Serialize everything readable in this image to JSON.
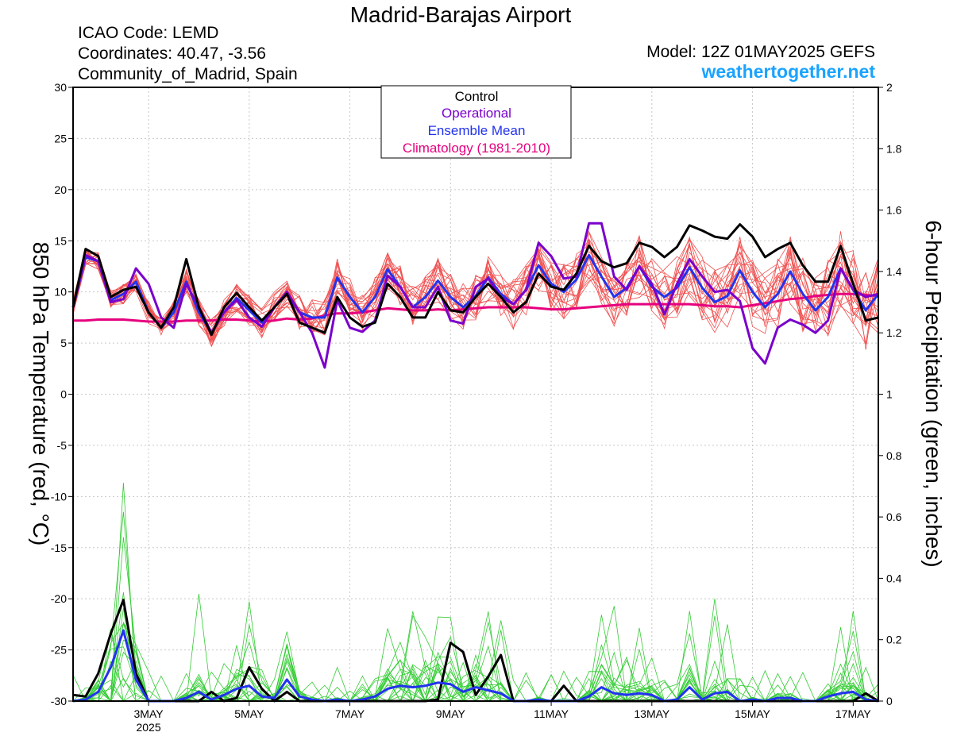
{
  "header": {
    "title": "Madrid-Barajas Airport",
    "icao": "ICAO Code: LEMD",
    "coordinates": "Coordinates: 40.47, -3.56",
    "region": "Community_of_Madrid, Spain",
    "model": "Model: 12Z 01MAY2025 GEFS",
    "brand": "weathertogether.net"
  },
  "colors": {
    "control": "#000000",
    "operational": "#7a00cc",
    "ensemble_mean": "#2233ee",
    "climatology": "#e6007e",
    "members_temp": "#f05050",
    "members_precip": "#33cc33",
    "brand": "#1aa3ff",
    "grid": "#c8c8c8"
  },
  "legend": {
    "items": [
      {
        "label": "Control",
        "color": "#000000"
      },
      {
        "label": "Operational",
        "color": "#7a00cc"
      },
      {
        "label": "Ensemble Mean",
        "color": "#2233ee"
      },
      {
        "label": "Climatology (1981-2010)",
        "color": "#e6007e"
      }
    ]
  },
  "chart_data": {
    "type": "line",
    "xlabel": "",
    "ylabel_left": "850 hPa Temperature (red, °C)",
    "ylabel_right": "6-hour Precipitation (green, inches)",
    "x_start": "01MAY2025 12Z",
    "x_step_hours": 6,
    "x_ticks": [
      "3MAY",
      "5MAY",
      "7MAY",
      "9MAY",
      "11MAY",
      "13MAY",
      "15MAY",
      "17MAY"
    ],
    "x_tick_year": "2025",
    "ylim_left": [
      -30,
      30
    ],
    "ylim_right": [
      0,
      2
    ],
    "yticks_left": [
      "30",
      "25",
      "20",
      "15",
      "10",
      "5",
      "0",
      "-5",
      "-10",
      "-15",
      "-20",
      "-25",
      "-30"
    ],
    "yticks_right": [
      "2",
      "1.8",
      "1.6",
      "1.4",
      "1.2",
      "1",
      "0.8",
      "0.6",
      "0.4",
      "0.2",
      "0"
    ],
    "grid": true,
    "legend_position": "top-center",
    "series": [
      {
        "name": "Control",
        "axis": "left",
        "values": [
          8.5,
          14.2,
          13.5,
          9.5,
          10.2,
          10.5,
          8.0,
          6.5,
          8.5,
          13.2,
          8.5,
          5.8,
          8.5,
          9.9,
          8.5,
          7.2,
          8.5,
          9.8,
          7.0,
          6.5,
          6.0,
          9.5,
          7.5,
          6.6,
          7.0,
          10.8,
          9.5,
          7.5,
          7.5,
          10.0,
          8.2,
          8.0,
          9.5,
          10.8,
          9.5,
          8.0,
          9.0,
          11.8,
          10.5,
          10.2,
          11.8,
          14.5,
          13.0,
          12.4,
          12.8,
          14.8,
          14.4,
          13.4,
          14.4,
          16.5,
          16.0,
          15.4,
          15.2,
          16.6,
          15.4,
          13.4,
          14.2,
          14.8,
          12.6,
          11.0,
          11.0,
          14.5,
          10.8,
          7.2,
          7.5
        ]
      },
      {
        "name": "Operational",
        "axis": "left",
        "values": [
          8.5,
          13.6,
          13.0,
          9.0,
          9.3,
          12.3,
          10.8,
          7.5,
          6.5,
          10.8,
          8.5,
          6.0,
          8.0,
          9.2,
          7.5,
          6.6,
          8.5,
          10.0,
          8.0,
          6.0,
          2.6,
          9.2,
          6.5,
          6.1,
          7.2,
          11.6,
          10.5,
          8.5,
          8.5,
          10.5,
          7.2,
          6.9,
          10.5,
          11.3,
          9.5,
          8.8,
          10.2,
          14.8,
          13.5,
          11.3,
          11.5,
          16.7,
          16.7,
          11.5,
          10.2,
          12.5,
          10.8,
          7.8,
          10.8,
          13.2,
          11.5,
          10.0,
          10.2,
          9.1,
          4.5,
          3.0,
          6.5,
          7.3,
          6.8,
          6.0,
          7.2,
          12.3,
          10.2,
          9.5,
          9.8
        ]
      },
      {
        "name": "Ensemble Mean",
        "axis": "left",
        "values": [
          8.5,
          13.4,
          13.0,
          9.2,
          9.8,
          11.0,
          8.0,
          6.5,
          8.0,
          11.0,
          8.0,
          6.0,
          8.0,
          9.4,
          8.2,
          7.0,
          8.5,
          9.8,
          8.0,
          7.5,
          7.5,
          11.4,
          9.5,
          8.0,
          9.5,
          12.2,
          10.5,
          8.5,
          9.5,
          11.1,
          9.5,
          8.5,
          9.6,
          11.4,
          9.8,
          8.8,
          10.2,
          12.6,
          10.8,
          10.0,
          11.2,
          13.6,
          11.5,
          9.5,
          10.4,
          12.5,
          10.5,
          9.5,
          10.4,
          12.4,
          10.4,
          9.0,
          9.6,
          12.1,
          10.0,
          8.5,
          9.8,
          12.0,
          9.8,
          8.2,
          9.5,
          12.3,
          10.2,
          8.2,
          9.8
        ]
      },
      {
        "name": "Climatology (1981-2010)",
        "axis": "left",
        "values": [
          7.2,
          7.2,
          7.3,
          7.3,
          7.3,
          7.2,
          7.1,
          7.1,
          7.1,
          7.2,
          7.2,
          7.2,
          7.3,
          7.3,
          7.2,
          7.1,
          7.2,
          7.4,
          7.3,
          7.4,
          7.7,
          7.9,
          7.9,
          8.0,
          8.2,
          8.4,
          8.3,
          8.2,
          8.2,
          8.3,
          8.2,
          8.3,
          8.4,
          8.5,
          8.5,
          8.5,
          8.5,
          8.4,
          8.3,
          8.3,
          8.4,
          8.5,
          8.6,
          8.7,
          8.8,
          8.8,
          8.8,
          8.8,
          8.8,
          8.8,
          8.7,
          8.6,
          8.6,
          8.5,
          8.7,
          8.9,
          9.1,
          9.3,
          9.4,
          9.6,
          9.7,
          9.8,
          9.8,
          9.7,
          9.6
        ]
      },
      {
        "name": "Control",
        "axis": "right",
        "values": [
          0.02,
          0.015,
          0.09,
          0.22,
          0.33,
          0.09,
          0.0,
          0.0,
          0.0,
          0.0,
          0.0,
          0.03,
          0.0,
          0.01,
          0.11,
          0.04,
          0.0,
          0.03,
          0.0,
          0.0,
          0.0,
          0.0,
          0.0,
          0.0,
          0.0,
          0.0,
          0.0,
          0.0,
          0.0,
          0.005,
          0.19,
          0.16,
          0.02,
          0.08,
          0.15,
          0.0,
          0.0,
          0.0,
          0.0,
          0.05,
          0.0,
          0.0,
          0.0,
          0.0,
          0.0,
          0.0,
          0.0,
          0.0,
          0.0,
          0.0,
          0.0,
          0.0,
          0.0,
          0.0,
          0.0,
          0.0,
          0.0,
          0.0,
          0.0,
          0.0,
          0.0,
          0.0,
          0.0,
          0.025,
          0.0
        ]
      },
      {
        "name": "Ensemble Mean",
        "axis": "right",
        "values": [
          0.0,
          0.005,
          0.03,
          0.11,
          0.23,
          0.07,
          0.0,
          0.0,
          0.0,
          0.01,
          0.03,
          0.005,
          0.02,
          0.04,
          0.05,
          0.015,
          0.01,
          0.07,
          0.015,
          0.005,
          0.0,
          0.005,
          0.0,
          0.005,
          0.015,
          0.04,
          0.05,
          0.045,
          0.05,
          0.06,
          0.055,
          0.03,
          0.045,
          0.035,
          0.025,
          0.0,
          0.0,
          0.005,
          0.0,
          0.0,
          0.0,
          0.015,
          0.045,
          0.025,
          0.02,
          0.025,
          0.02,
          0.0,
          0.005,
          0.045,
          0.005,
          0.025,
          0.03,
          0.0,
          0.005,
          0.0,
          0.01,
          0.01,
          0.0,
          0.0,
          0.015,
          0.025,
          0.03,
          0.005,
          0.0
        ]
      }
    ]
  }
}
